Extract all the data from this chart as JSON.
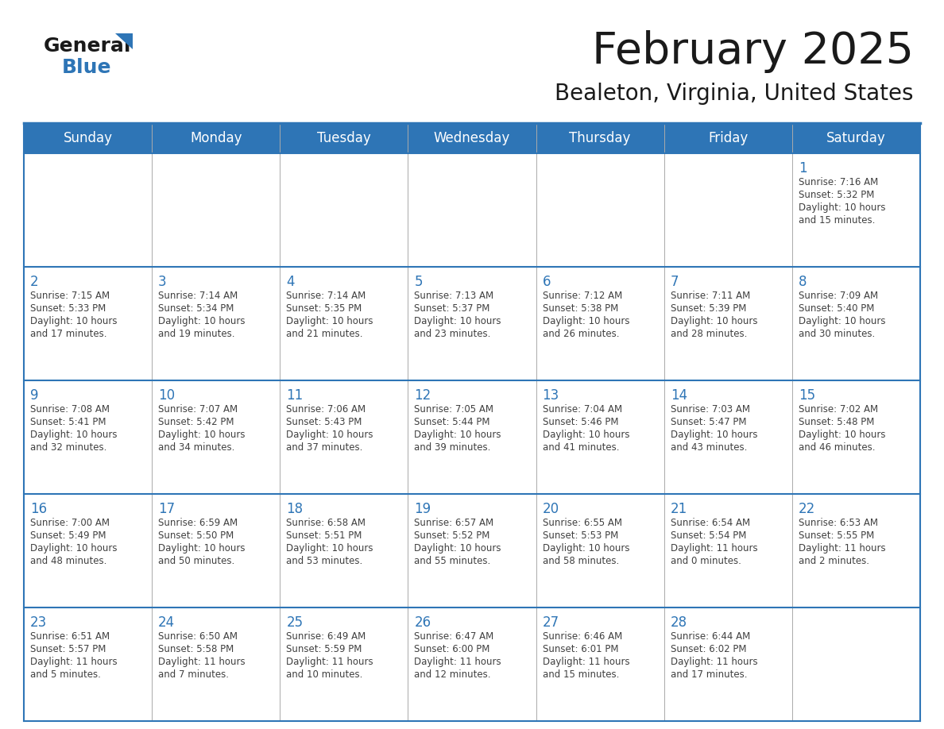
{
  "title": "February 2025",
  "subtitle": "Bealeton, Virginia, United States",
  "header_bg": "#2E75B6",
  "header_text_color": "#FFFFFF",
  "day_number_color": "#2E75B6",
  "cell_text_color": "#404040",
  "days_of_week": [
    "Sunday",
    "Monday",
    "Tuesday",
    "Wednesday",
    "Thursday",
    "Friday",
    "Saturday"
  ],
  "calendar_data": [
    [
      null,
      null,
      null,
      null,
      null,
      null,
      {
        "day": 1,
        "sunrise": "7:16 AM",
        "sunset": "5:32 PM",
        "daylight": "10 hours\nand 15 minutes."
      }
    ],
    [
      {
        "day": 2,
        "sunrise": "7:15 AM",
        "sunset": "5:33 PM",
        "daylight": "10 hours\nand 17 minutes."
      },
      {
        "day": 3,
        "sunrise": "7:14 AM",
        "sunset": "5:34 PM",
        "daylight": "10 hours\nand 19 minutes."
      },
      {
        "day": 4,
        "sunrise": "7:14 AM",
        "sunset": "5:35 PM",
        "daylight": "10 hours\nand 21 minutes."
      },
      {
        "day": 5,
        "sunrise": "7:13 AM",
        "sunset": "5:37 PM",
        "daylight": "10 hours\nand 23 minutes."
      },
      {
        "day": 6,
        "sunrise": "7:12 AM",
        "sunset": "5:38 PM",
        "daylight": "10 hours\nand 26 minutes."
      },
      {
        "day": 7,
        "sunrise": "7:11 AM",
        "sunset": "5:39 PM",
        "daylight": "10 hours\nand 28 minutes."
      },
      {
        "day": 8,
        "sunrise": "7:09 AM",
        "sunset": "5:40 PM",
        "daylight": "10 hours\nand 30 minutes."
      }
    ],
    [
      {
        "day": 9,
        "sunrise": "7:08 AM",
        "sunset": "5:41 PM",
        "daylight": "10 hours\nand 32 minutes."
      },
      {
        "day": 10,
        "sunrise": "7:07 AM",
        "sunset": "5:42 PM",
        "daylight": "10 hours\nand 34 minutes."
      },
      {
        "day": 11,
        "sunrise": "7:06 AM",
        "sunset": "5:43 PM",
        "daylight": "10 hours\nand 37 minutes."
      },
      {
        "day": 12,
        "sunrise": "7:05 AM",
        "sunset": "5:44 PM",
        "daylight": "10 hours\nand 39 minutes."
      },
      {
        "day": 13,
        "sunrise": "7:04 AM",
        "sunset": "5:46 PM",
        "daylight": "10 hours\nand 41 minutes."
      },
      {
        "day": 14,
        "sunrise": "7:03 AM",
        "sunset": "5:47 PM",
        "daylight": "10 hours\nand 43 minutes."
      },
      {
        "day": 15,
        "sunrise": "7:02 AM",
        "sunset": "5:48 PM",
        "daylight": "10 hours\nand 46 minutes."
      }
    ],
    [
      {
        "day": 16,
        "sunrise": "7:00 AM",
        "sunset": "5:49 PM",
        "daylight": "10 hours\nand 48 minutes."
      },
      {
        "day": 17,
        "sunrise": "6:59 AM",
        "sunset": "5:50 PM",
        "daylight": "10 hours\nand 50 minutes."
      },
      {
        "day": 18,
        "sunrise": "6:58 AM",
        "sunset": "5:51 PM",
        "daylight": "10 hours\nand 53 minutes."
      },
      {
        "day": 19,
        "sunrise": "6:57 AM",
        "sunset": "5:52 PM",
        "daylight": "10 hours\nand 55 minutes."
      },
      {
        "day": 20,
        "sunrise": "6:55 AM",
        "sunset": "5:53 PM",
        "daylight": "10 hours\nand 58 minutes."
      },
      {
        "day": 21,
        "sunrise": "6:54 AM",
        "sunset": "5:54 PM",
        "daylight": "11 hours\nand 0 minutes."
      },
      {
        "day": 22,
        "sunrise": "6:53 AM",
        "sunset": "5:55 PM",
        "daylight": "11 hours\nand 2 minutes."
      }
    ],
    [
      {
        "day": 23,
        "sunrise": "6:51 AM",
        "sunset": "5:57 PM",
        "daylight": "11 hours\nand 5 minutes."
      },
      {
        "day": 24,
        "sunrise": "6:50 AM",
        "sunset": "5:58 PM",
        "daylight": "11 hours\nand 7 minutes."
      },
      {
        "day": 25,
        "sunrise": "6:49 AM",
        "sunset": "5:59 PM",
        "daylight": "11 hours\nand 10 minutes."
      },
      {
        "day": 26,
        "sunrise": "6:47 AM",
        "sunset": "6:00 PM",
        "daylight": "11 hours\nand 12 minutes."
      },
      {
        "day": 27,
        "sunrise": "6:46 AM",
        "sunset": "6:01 PM",
        "daylight": "11 hours\nand 15 minutes."
      },
      {
        "day": 28,
        "sunrise": "6:44 AM",
        "sunset": "6:02 PM",
        "daylight": "11 hours\nand 17 minutes."
      },
      null
    ]
  ],
  "logo_general_color": "#1a1a1a",
  "logo_blue_color": "#2E75B6",
  "logo_triangle_color": "#2E75B6"
}
